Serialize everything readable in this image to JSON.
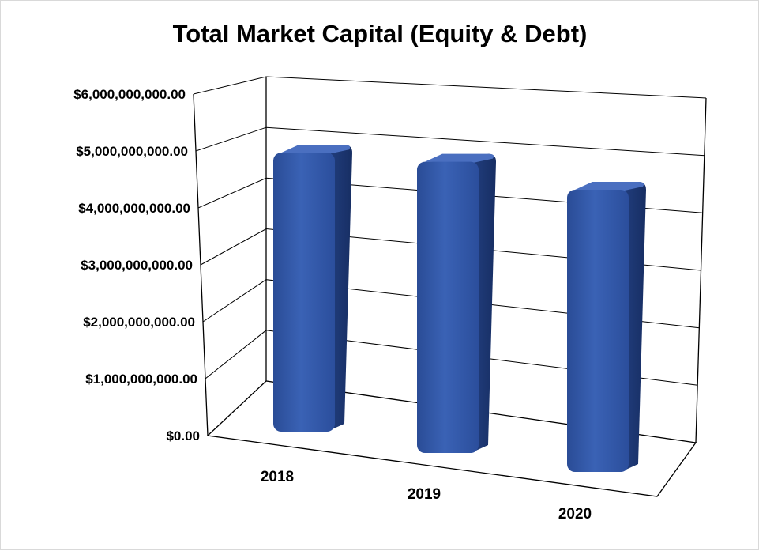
{
  "chart_data": {
    "type": "bar",
    "style": "3d-column",
    "title": "Total Market Capital (Equity & Debt)",
    "categories": [
      "2018",
      "2019",
      "2020"
    ],
    "values": [
      5000000000,
      5220000000,
      5060000000
    ],
    "ylim": [
      0,
      6000000000
    ],
    "ytick_labels": [
      "$0.00",
      "$1,000,000,000.00",
      "$2,000,000,000.00",
      "$3,000,000,000.00",
      "$4,000,000,000.00",
      "$5,000,000,000.00",
      "$6,000,000,000.00"
    ],
    "grid": true,
    "legend": "none",
    "colors": {
      "bar_front": "#2f55a4",
      "bar_side": "#1d3c7e",
      "bar_top": "#4a6fc0",
      "grid": "#000000"
    }
  }
}
